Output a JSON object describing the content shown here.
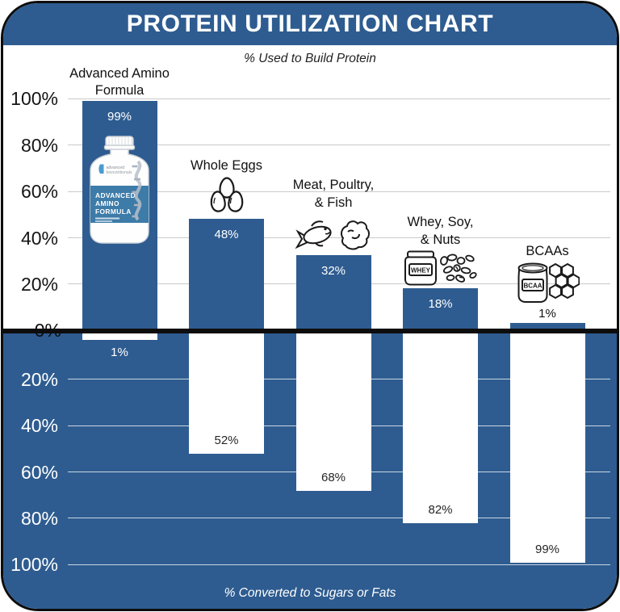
{
  "header": {
    "title": "PROTEIN UTILIZATION CHART"
  },
  "top_section": {
    "subtitle": "% Used to Build Protein",
    "axis_ticks": [
      "100%",
      "80%",
      "60%",
      "40%",
      "20%"
    ],
    "zero_label": "0%"
  },
  "bottom_section": {
    "subtitle": "% Converted to Sugars or Fats",
    "axis_ticks": [
      "20%",
      "40%",
      "60%",
      "80%",
      "100%"
    ]
  },
  "colors": {
    "primary_blue": "#2e5c90",
    "divider_black": "#0d0d0d",
    "bottle_band_blue": "#3d7ba8",
    "top_grid": "#c9c9c9",
    "bottom_grid": "rgba(255,255,255,0.75)"
  },
  "bottle": {
    "logo_lines": [
      "advanced",
      "bionutritionals"
    ],
    "label_lines": [
      "ADVANCED",
      "AMINO",
      "FORMULA"
    ]
  },
  "jar_labels": {
    "whey": "WHEY",
    "bcaa": "BCAA"
  },
  "chart_data": {
    "type": "bar",
    "orientation": "diverging-vertical",
    "title": "PROTEIN UTILIZATION CHART",
    "categories": [
      "Advanced Amino Formula",
      "Whole Eggs",
      "Meat, Poultry, & Fish",
      "Whey, Soy, & Nuts",
      "BCAAs"
    ],
    "category_lines": [
      [
        "Advanced Amino",
        "Formula"
      ],
      [
        "Whole Eggs"
      ],
      [
        "Meat, Poultry,",
        "& Fish"
      ],
      [
        "Whey, Soy,",
        "& Nuts"
      ],
      [
        "BCAAs"
      ]
    ],
    "icons": [
      "amino-bottle",
      "whole-eggs",
      "meat-poultry-fish",
      "whey-soy-nuts",
      "bcaa-honeycomb"
    ],
    "series": [
      {
        "name": "% Used to Build Protein",
        "direction": "up",
        "values": [
          99,
          48,
          32,
          18,
          1
        ],
        "labels": [
          "99%",
          "48%",
          "32%",
          "18%",
          "1%"
        ]
      },
      {
        "name": "% Converted to Sugars or Fats",
        "direction": "down",
        "values": [
          1,
          52,
          68,
          82,
          99
        ],
        "labels": [
          "1%",
          "52%",
          "68%",
          "82%",
          "99%"
        ]
      }
    ],
    "ylim": [
      0,
      100
    ],
    "y_tick_step": 20,
    "grid": true,
    "legend": false
  }
}
